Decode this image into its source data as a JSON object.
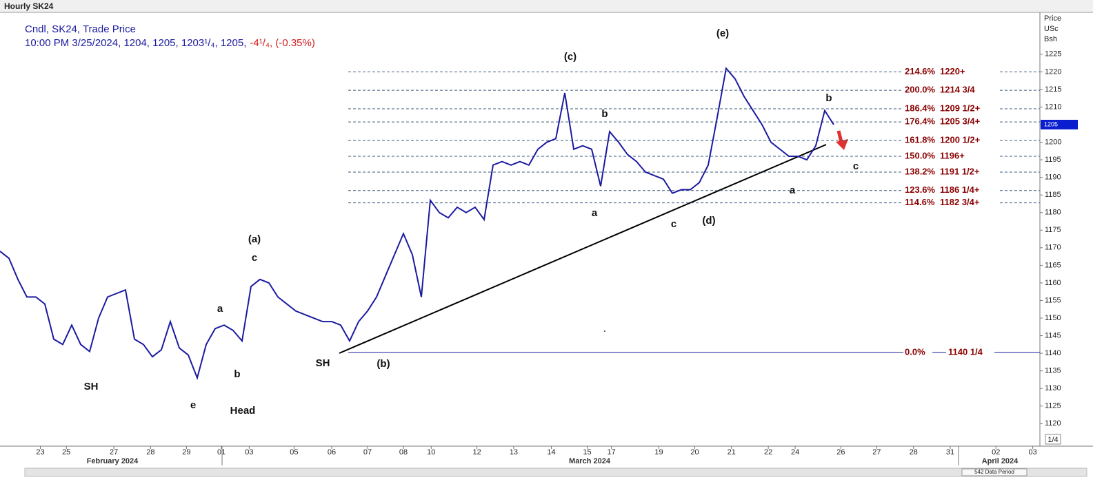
{
  "chart_data": {
    "type": "line",
    "title": "Hourly SK24",
    "legend_line1": "Cndl, SK24, Trade Price",
    "legend_line2": "10:00 PM 3/25/2024, 1204, 1205, 1203¹/₄, 1205,",
    "legend_change": "-4¹/₄, (-0.35%)",
    "axis_header": [
      "Price",
      "USc",
      "Bsh"
    ],
    "last_price": 1205,
    "last_price_label": "1205",
    "scale_box": "1/4",
    "data_period": "542 Data Period",
    "months": [
      "February 2024",
      "March 2024",
      "April 2024"
    ],
    "series": [
      {
        "name": "SK24",
        "color": "#1a1aa0",
        "values": [
          1169,
          1167,
          1161,
          1156,
          1156,
          1154,
          1144,
          1142.5,
          1148,
          1142.5,
          1140.5,
          1150,
          1156,
          1157,
          1158,
          1144,
          1142.5,
          1139,
          1141,
          1149,
          1141.5,
          1139.5,
          1133,
          1142.5,
          1147,
          1148,
          1146.5,
          1143.5,
          1159,
          1161,
          1160,
          1156,
          1154,
          1152,
          1151,
          1150,
          1149,
          1149,
          1148,
          1143.5,
          1149,
          1152,
          1156,
          1162,
          1168,
          1174,
          1168,
          1156,
          1183.5,
          1180,
          1178.5,
          1181.5,
          1180,
          1181.5,
          1178,
          1193.5,
          1194.5,
          1193.5,
          1194.5,
          1193.5,
          1198,
          1200,
          1201,
          1214,
          1198,
          1199,
          1198,
          1187.5,
          1203,
          1200,
          1196.5,
          1194.5,
          1191.5,
          1190.5,
          1189.5,
          1185.5,
          1186.5,
          1186.5,
          1188.5,
          1193.5,
          1207,
          1221,
          1218,
          1213,
          1209,
          1205,
          1200,
          1198,
          1196,
          1196,
          1195,
          1199,
          1209,
          1205
        ]
      }
    ],
    "xlim": [
      0,
      116
    ],
    "xticks": [
      {
        "value": 4.5,
        "label": "23"
      },
      {
        "value": 7.4,
        "label": "25"
      },
      {
        "value": 12.7,
        "label": "27"
      },
      {
        "value": 16.8,
        "label": "28"
      },
      {
        "value": 20.8,
        "label": "29"
      },
      {
        "value": 24.7,
        "label": "01"
      },
      {
        "value": 27.8,
        "label": "03"
      },
      {
        "value": 32.8,
        "label": "05"
      },
      {
        "value": 37,
        "label": "06"
      },
      {
        "value": 41,
        "label": "07"
      },
      {
        "value": 45,
        "label": "08"
      },
      {
        "value": 48.1,
        "label": "10"
      },
      {
        "value": 53.2,
        "label": "12"
      },
      {
        "value": 57.3,
        "label": "13"
      },
      {
        "value": 61.5,
        "label": "14"
      },
      {
        "value": 65.5,
        "label": "15"
      },
      {
        "value": 68.2,
        "label": "17"
      },
      {
        "value": 73.5,
        "label": "19"
      },
      {
        "value": 77.5,
        "label": "20"
      },
      {
        "value": 81.6,
        "label": "21"
      },
      {
        "value": 85.7,
        "label": "22"
      },
      {
        "value": 88.7,
        "label": "24"
      },
      {
        "value": 93.8,
        "label": "26"
      },
      {
        "value": 97.8,
        "label": "27"
      },
      {
        "value": 101.9,
        "label": "28"
      },
      {
        "value": 106,
        "label": "31"
      },
      {
        "value": 111.1,
        "label": "02"
      },
      {
        "value": 115.2,
        "label": "03"
      }
    ],
    "ylim": [
      1113.6,
      1236.9
    ],
    "yticks": [
      1120,
      1125,
      1130,
      1135,
      1140,
      1145,
      1150,
      1155,
      1160,
      1165,
      1170,
      1175,
      1180,
      1185,
      1190,
      1195,
      1200,
      1205,
      1210,
      1215,
      1220,
      1225
    ],
    "fib_levels": [
      {
        "percent": "214.6%",
        "price": "1220+",
        "value": 1220
      },
      {
        "percent": "200.0%",
        "price": "1214 3/4",
        "value": 1214.75
      },
      {
        "percent": "186.4%",
        "price": "1209 1/2+",
        "value": 1209.5
      },
      {
        "percent": "176.4%",
        "price": "1205 3/4+",
        "value": 1205.75
      },
      {
        "percent": "161.8%",
        "price": "1200 1/2+",
        "value": 1200.5
      },
      {
        "percent": "150.0%",
        "price": "1196+",
        "value": 1196
      },
      {
        "percent": "138.2%",
        "price": "1191 1/2+",
        "value": 1191.5
      },
      {
        "percent": "123.6%",
        "price": "1186 1/4+",
        "value": 1186.25
      },
      {
        "percent": "114.6%",
        "price": "1182 3/4+",
        "value": 1182.75
      },
      {
        "percent": "0.0%",
        "price": "1140 1/4",
        "value": 1140.25
      }
    ],
    "annotations": [
      "(e)",
      "(c)",
      "b",
      "b",
      "a",
      "c",
      "(d)",
      "a",
      "c",
      "(a)",
      "c",
      "a",
      "b",
      "SH",
      "(b)",
      "SH",
      "e",
      "Head"
    ]
  }
}
